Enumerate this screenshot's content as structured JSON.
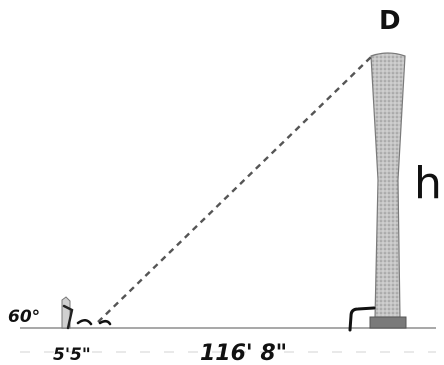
{
  "labels": {
    "top_point": "D",
    "height": "h",
    "angle": "60°",
    "observer_height": "5'5\"",
    "distance": "116' 8\""
  },
  "colors": {
    "ink": "#111111",
    "ground": "#a9a9a9",
    "tower_fill": "#b9b9b9",
    "tower_base": "#7a7a7a",
    "dashed_line": "#555555"
  },
  "icons": {
    "tower": "tapered-tower-icon",
    "observer": "observer-with-angle-icon"
  }
}
